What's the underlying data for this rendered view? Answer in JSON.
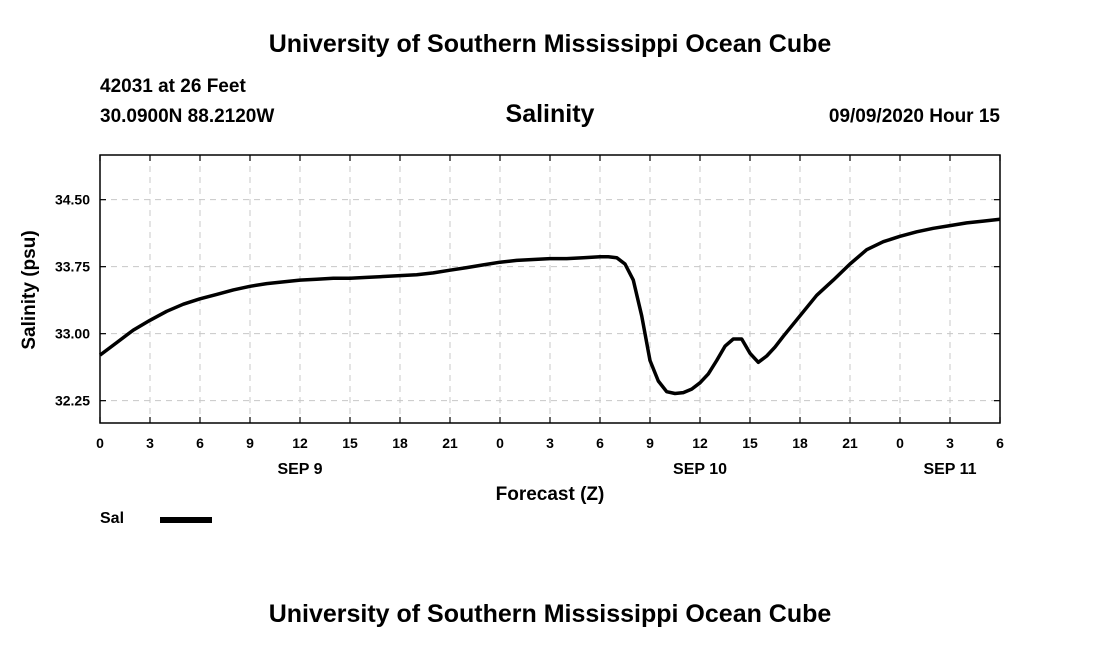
{
  "header": {
    "title_top": "University of Southern Mississippi Ocean Cube",
    "station": "42031 at 26 Feet",
    "coords": "30.0900N 88.2120W",
    "parameter": "Salinity",
    "datetime": "09/09/2020 Hour 15"
  },
  "footer": {
    "title_bottom": "University of Southern Mississippi Ocean Cube"
  },
  "legend": {
    "label": "Sal",
    "color": "#000000"
  },
  "chart_data": {
    "type": "line",
    "title": "Salinity",
    "xlabel": "Forecast (Z)",
    "ylabel": "Salinity (psu)",
    "xlim": [
      0,
      54
    ],
    "ylim": [
      32.0,
      35.0
    ],
    "grid": true,
    "x_ticks": [
      0,
      3,
      6,
      9,
      12,
      15,
      18,
      21,
      24,
      27,
      30,
      33,
      36,
      39,
      42,
      45,
      48,
      51,
      54
    ],
    "x_tick_labels": [
      "0",
      "3",
      "6",
      "9",
      "12",
      "15",
      "18",
      "21",
      "0",
      "3",
      "6",
      "9",
      "12",
      "15",
      "18",
      "21",
      "0",
      "3",
      "6"
    ],
    "day_labels": [
      {
        "label": "SEP 9",
        "x": 12
      },
      {
        "label": "SEP 10",
        "x": 36
      },
      {
        "label": "SEP 11",
        "x": 51
      }
    ],
    "y_ticks": [
      32.25,
      33.0,
      33.75,
      34.5
    ],
    "y_tick_labels": [
      "32.25",
      "33.00",
      "33.75",
      "34.50"
    ],
    "series": [
      {
        "name": "Sal",
        "x": [
          0,
          1,
          2,
          3,
          4,
          5,
          6,
          7,
          8,
          9,
          10,
          11,
          12,
          13,
          14,
          15,
          16,
          17,
          18,
          19,
          20,
          21,
          22,
          23,
          24,
          25,
          26,
          27,
          28,
          29,
          30,
          30.5,
          31,
          31.5,
          32,
          32.5,
          33,
          33.5,
          34,
          34.5,
          35,
          35.5,
          36,
          36.5,
          37,
          37.5,
          38,
          38.5,
          39,
          39.5,
          40,
          40.5,
          41,
          42,
          43,
          44,
          45,
          46,
          47,
          48,
          49,
          50,
          51,
          52,
          53,
          54
        ],
        "y": [
          32.76,
          32.9,
          33.04,
          33.15,
          33.25,
          33.33,
          33.39,
          33.44,
          33.49,
          33.53,
          33.56,
          33.58,
          33.6,
          33.61,
          33.62,
          33.62,
          33.63,
          33.64,
          33.65,
          33.66,
          33.68,
          33.71,
          33.74,
          33.77,
          33.8,
          33.82,
          33.83,
          33.84,
          33.84,
          33.85,
          33.86,
          33.86,
          33.85,
          33.78,
          33.6,
          33.2,
          32.7,
          32.47,
          32.35,
          32.33,
          32.34,
          32.38,
          32.45,
          32.55,
          32.7,
          32.86,
          32.94,
          32.94,
          32.78,
          32.68,
          32.75,
          32.85,
          32.97,
          33.2,
          33.43,
          33.6,
          33.78,
          33.94,
          34.03,
          34.09,
          34.14,
          34.18,
          34.21,
          34.24,
          34.26,
          34.28
        ]
      }
    ]
  }
}
